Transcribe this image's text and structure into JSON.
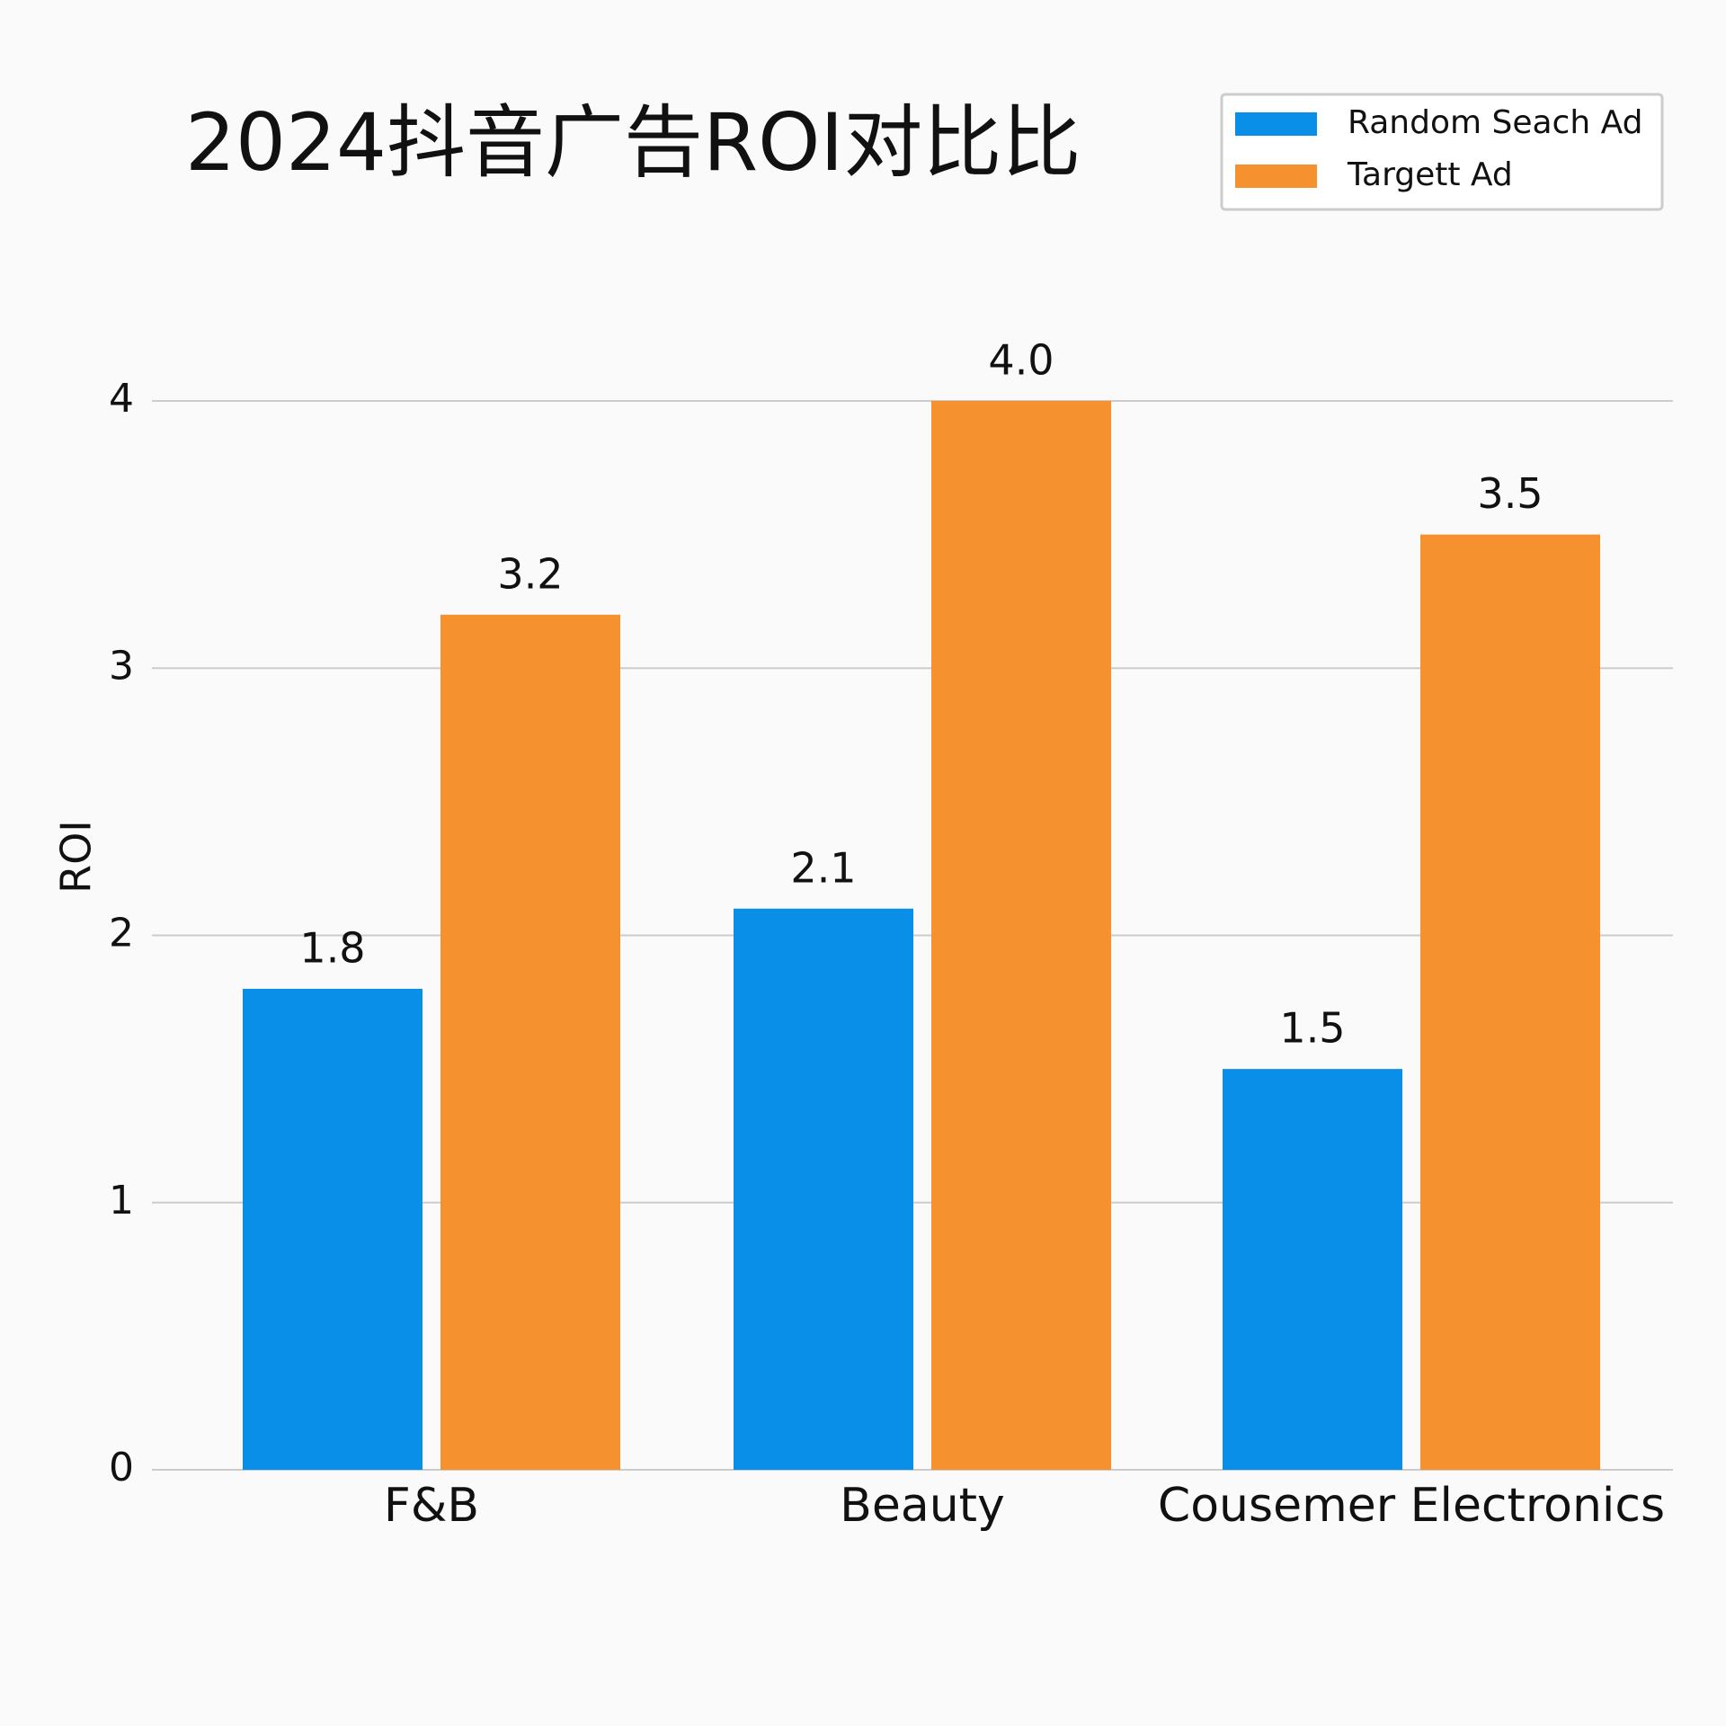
{
  "chart_data": {
    "type": "bar",
    "title": "2024抖音广告ROI对比比",
    "y_label": "ROI",
    "categories": [
      "F&B",
      "Beauty",
      "Cousemer Electronics"
    ],
    "series": [
      {
        "name": "Random Seach Ad",
        "color": "#0a8fe8",
        "values": [
          1.8,
          2.1,
          1.5
        ]
      },
      {
        "name": "Targett Ad",
        "color": "#f5922f",
        "values": [
          3.2,
          4.0,
          3.5
        ],
        "value_labels": [
          "3.2",
          "4.0",
          "3.5"
        ]
      }
    ],
    "ylim": [
      0,
      4
    ],
    "yticks": [
      0,
      1,
      2,
      3,
      4
    ],
    "grid": true,
    "legend": "top-right"
  }
}
